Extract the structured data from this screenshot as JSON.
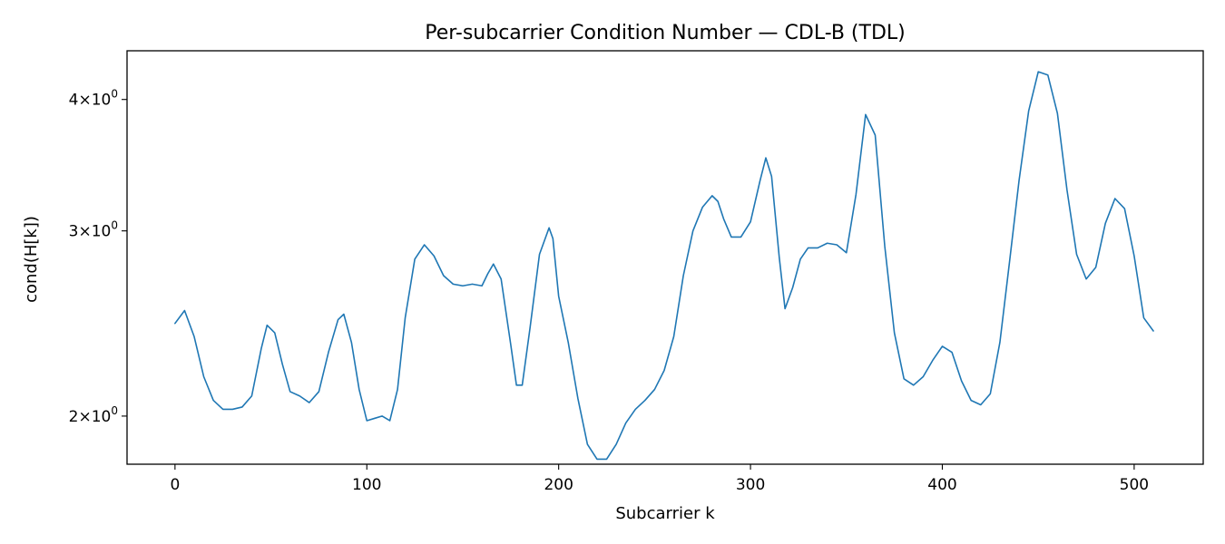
{
  "chart_data": {
    "type": "line",
    "title": "Per-subcarrier Condition Number — CDL-B (TDL)",
    "xlabel": "Subcarrier k",
    "ylabel": "cond(H[k])",
    "x_scale": "linear",
    "y_scale": "log",
    "xlim": [
      -25,
      536
    ],
    "ylim": [
      1.8,
      4.45
    ],
    "grid": false,
    "line_color": "#1f77b4",
    "x_ticks": [
      {
        "value": 0,
        "label": "0"
      },
      {
        "value": 100,
        "label": "100"
      },
      {
        "value": 200,
        "label": "200"
      },
      {
        "value": 300,
        "label": "300"
      },
      {
        "value": 400,
        "label": "400"
      },
      {
        "value": 500,
        "label": "500"
      }
    ],
    "y_ticks": [
      {
        "value": 2,
        "mantissa": "2",
        "times": "×",
        "base": "10",
        "exp": "0"
      },
      {
        "value": 3,
        "mantissa": "3",
        "times": "×",
        "base": "10",
        "exp": "0"
      },
      {
        "value": 4,
        "mantissa": "4",
        "times": "×",
        "base": "10",
        "exp": "0"
      }
    ],
    "series": [
      {
        "x": [
          0,
          5,
          10,
          15,
          20,
          25,
          30,
          35,
          40,
          45,
          48,
          52,
          56,
          60,
          65,
          70,
          75,
          80,
          85,
          88,
          92,
          96,
          100,
          104,
          108,
          112,
          116,
          120,
          125,
          130,
          135,
          140,
          145,
          150,
          155,
          160,
          163,
          166,
          170,
          175,
          178,
          181,
          185,
          190,
          195,
          197,
          200,
          205,
          210,
          215,
          220,
          225,
          230,
          235,
          240,
          245,
          250,
          255,
          260,
          265,
          270,
          275,
          280,
          283,
          286,
          290,
          295,
          300,
          305,
          308,
          311,
          315,
          318,
          322,
          326,
          330,
          335,
          340,
          345,
          350,
          355,
          360,
          365,
          370,
          375,
          380,
          385,
          390,
          395,
          400,
          405,
          410,
          415,
          420,
          425,
          430,
          435,
          440,
          445,
          450,
          455,
          460,
          465,
          470,
          475,
          480,
          485,
          490,
          495,
          500,
          505,
          510
        ],
        "y": [
          2.45,
          2.52,
          2.38,
          2.18,
          2.07,
          2.03,
          2.03,
          2.04,
          2.09,
          2.32,
          2.44,
          2.4,
          2.24,
          2.11,
          2.09,
          2.06,
          2.11,
          2.3,
          2.47,
          2.5,
          2.35,
          2.12,
          1.98,
          1.99,
          2.0,
          1.98,
          2.12,
          2.48,
          2.82,
          2.91,
          2.84,
          2.72,
          2.67,
          2.66,
          2.67,
          2.66,
          2.73,
          2.79,
          2.7,
          2.34,
          2.14,
          2.14,
          2.42,
          2.85,
          3.02,
          2.95,
          2.6,
          2.35,
          2.08,
          1.88,
          1.82,
          1.82,
          1.88,
          1.97,
          2.03,
          2.07,
          2.12,
          2.21,
          2.38,
          2.72,
          3.0,
          3.16,
          3.24,
          3.2,
          3.08,
          2.96,
          2.96,
          3.06,
          3.35,
          3.52,
          3.38,
          2.83,
          2.53,
          2.65,
          2.82,
          2.89,
          2.89,
          2.92,
          2.91,
          2.86,
          3.25,
          3.87,
          3.7,
          2.9,
          2.4,
          2.17,
          2.14,
          2.18,
          2.26,
          2.33,
          2.3,
          2.16,
          2.07,
          2.05,
          2.1,
          2.35,
          2.8,
          3.35,
          3.9,
          4.25,
          4.22,
          3.88,
          3.28,
          2.85,
          2.7,
          2.77,
          3.05,
          3.22,
          3.15,
          2.84,
          2.48,
          2.41
        ]
      }
    ]
  }
}
